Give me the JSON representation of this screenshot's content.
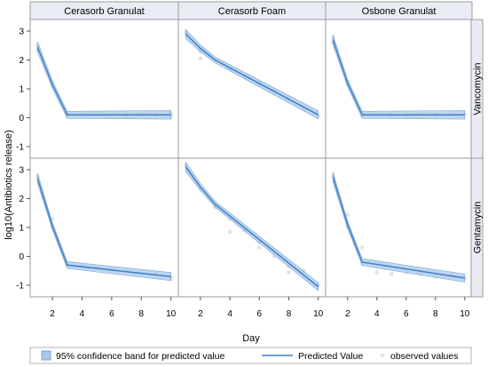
{
  "chart_data": {
    "type": "line",
    "layout": "panel-grid",
    "columns": [
      "Cerasorb Granulat",
      "Cerasorb Foam",
      "Osbone Granulat"
    ],
    "rows": [
      "Vancomycin",
      "Gentamycin"
    ],
    "xlabel": "Day",
    "ylabel": "log10(Antibiotics release)",
    "xlim": [
      0.5,
      10.5
    ],
    "ylim": [
      -1.4,
      3.4
    ],
    "x_ticks": [
      2,
      4,
      6,
      8,
      10
    ],
    "y_ticks": [
      -1,
      0,
      1,
      2,
      3
    ],
    "grid": false,
    "legend": {
      "placement": "bottom",
      "entries": [
        {
          "label": "95% confidence band for predicted value",
          "kind": "band"
        },
        {
          "label": "Predicted Value",
          "kind": "line"
        },
        {
          "label": "observed values",
          "kind": "marker"
        }
      ]
    },
    "colors": {
      "band_fill": "#a8c8ea",
      "band_edge": "#7aa6d8",
      "line": "#3f7fc8",
      "observed": "#e2e4e8",
      "header_bg": "#e9edf3"
    },
    "panels": [
      {
        "row": "Vancomycin",
        "column": "Cerasorb Granulat",
        "predicted": {
          "x": [
            1,
            2,
            3,
            10
          ],
          "y": [
            2.45,
            1.15,
            0.1,
            0.1
          ]
        },
        "band_halfwidth": [
          0.18,
          0.13,
          0.12,
          0.15
        ],
        "observed": {
          "x": [
            1,
            1,
            2,
            2,
            3,
            3,
            4,
            5,
            6,
            7,
            8,
            9,
            10,
            10
          ],
          "y": [
            2.5,
            2.35,
            1.2,
            1.1,
            0.15,
            0.05,
            0.12,
            0.12,
            0.1,
            0.1,
            0.12,
            0.1,
            0.15,
            0.05
          ]
        }
      },
      {
        "row": "Vancomycin",
        "column": "Cerasorb Foam",
        "predicted": {
          "x": [
            1,
            2,
            3,
            10
          ],
          "y": [
            2.9,
            2.4,
            2.0,
            0.1
          ]
        },
        "band_halfwidth": [
          0.16,
          0.12,
          0.1,
          0.14
        ],
        "observed": {
          "x": [
            1,
            2,
            2,
            3,
            4,
            5,
            6,
            7,
            8,
            9,
            10
          ],
          "y": [
            2.95,
            2.3,
            2.05,
            2.0,
            1.7,
            1.4,
            1.2,
            0.95,
            0.65,
            0.3,
            0.05
          ]
        }
      },
      {
        "row": "Vancomycin",
        "column": "Osbone Granulat",
        "predicted": {
          "x": [
            1,
            2,
            3,
            10
          ],
          "y": [
            2.7,
            1.2,
            0.1,
            0.1
          ]
        },
        "band_halfwidth": [
          0.18,
          0.13,
          0.12,
          0.15
        ],
        "observed": {
          "x": [
            1,
            1,
            2,
            2,
            3,
            3,
            4,
            5,
            6,
            7,
            8,
            9,
            10
          ],
          "y": [
            2.75,
            2.6,
            1.25,
            1.15,
            0.15,
            0.08,
            0.12,
            0.1,
            0.1,
            0.12,
            0.1,
            0.1,
            0.12
          ]
        }
      },
      {
        "row": "Gentamycin",
        "column": "Cerasorb Granulat",
        "predicted": {
          "x": [
            1,
            2,
            3,
            10
          ],
          "y": [
            2.7,
            1.05,
            -0.3,
            -0.7
          ]
        },
        "band_halfwidth": [
          0.18,
          0.13,
          0.12,
          0.14
        ],
        "observed": {
          "x": [
            1,
            2,
            2,
            3,
            4,
            5,
            6,
            7,
            8,
            9,
            10
          ],
          "y": [
            2.75,
            1.3,
            1.0,
            -0.25,
            -0.35,
            -0.4,
            -0.45,
            -0.5,
            -0.6,
            -0.6,
            -0.75
          ]
        }
      },
      {
        "row": "Gentamycin",
        "column": "Cerasorb Foam",
        "predicted": {
          "x": [
            1,
            2,
            3,
            10
          ],
          "y": [
            3.1,
            2.4,
            1.8,
            -1.05
          ]
        },
        "band_halfwidth": [
          0.16,
          0.12,
          0.1,
          0.14
        ],
        "observed": {
          "x": [
            1,
            2,
            3,
            4,
            4,
            5,
            6,
            6,
            7,
            8,
            8,
            9,
            10
          ],
          "y": [
            3.15,
            2.35,
            1.7,
            1.3,
            0.85,
            0.9,
            0.5,
            0.3,
            0.0,
            -0.35,
            -0.55,
            -0.5,
            -1.0
          ]
        }
      },
      {
        "row": "Gentamycin",
        "column": "Osbone Granulat",
        "predicted": {
          "x": [
            1,
            2,
            3,
            10
          ],
          "y": [
            2.75,
            1.1,
            -0.2,
            -0.75
          ]
        },
        "band_halfwidth": [
          0.18,
          0.13,
          0.12,
          0.14
        ],
        "observed": {
          "x": [
            1,
            2,
            2,
            3,
            3,
            4,
            5,
            6,
            7,
            8,
            9,
            10
          ],
          "y": [
            2.8,
            1.45,
            1.0,
            0.3,
            -0.25,
            -0.55,
            -0.6,
            -0.55,
            -0.6,
            -0.7,
            -0.65,
            -0.75
          ]
        }
      }
    ]
  }
}
